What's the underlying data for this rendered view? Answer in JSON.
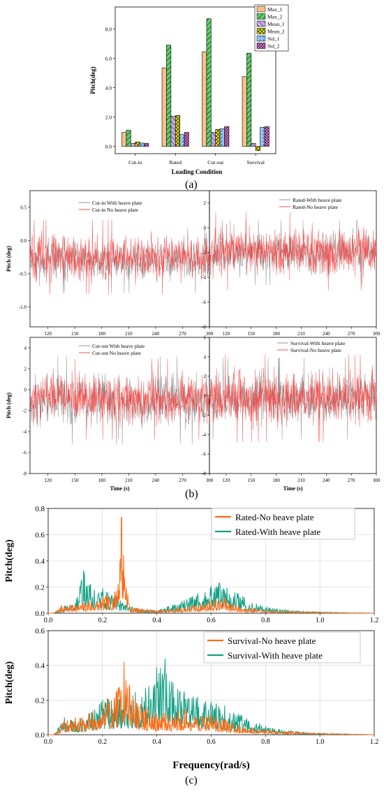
{
  "panel_labels": {
    "a": "(a)",
    "b": "(b)",
    "c": "(c)"
  },
  "colors": {
    "max1": "#f7c08a",
    "max2": "#5fd06a",
    "mean1": "#c9a8e8",
    "mean2": "#f2f200",
    "std1": "#8fc4f0",
    "std2": "#e58ad6",
    "gray": "#8a8a8a",
    "red": "#ff3b3b",
    "orange": "#ff6a13",
    "teal": "#14a085"
  },
  "chart_data": [
    {
      "id": "a",
      "type": "bar",
      "xlabel": "Loading Condition",
      "ylabel": "Pitch(deg)",
      "categories": [
        "Cut-in",
        "Rated",
        "Cut-out",
        "Survival"
      ],
      "ylim": [
        -0.5,
        9.5
      ],
      "yticks": [
        0.0,
        2.0,
        4.0,
        6.0,
        8.0
      ],
      "ytick_labels": [
        "0.0",
        "2.0",
        "4.0",
        "6.0",
        "8.0"
      ],
      "legend_position": "top-right",
      "series": [
        {
          "name": "Max_1",
          "values": [
            0.95,
            5.35,
            6.45,
            4.75
          ]
        },
        {
          "name": "Max_2",
          "values": [
            1.1,
            6.9,
            8.7,
            6.35
          ]
        },
        {
          "name": "Mean_1",
          "values": [
            0.2,
            2.05,
            0.95,
            0.2
          ]
        },
        {
          "name": "Mean_2",
          "values": [
            0.3,
            2.1,
            1.15,
            -0.3
          ]
        },
        {
          "name": "Std_1",
          "values": [
            0.22,
            0.8,
            1.2,
            1.3
          ]
        },
        {
          "name": "Std_2",
          "values": [
            0.2,
            0.95,
            1.35,
            1.35
          ]
        }
      ]
    },
    {
      "id": "b1",
      "type": "line",
      "xlabel": "",
      "ylabel": "Pitch (deg)",
      "xlim": [
        100,
        300
      ],
      "ylim": [
        -1.3,
        0.75
      ],
      "xticks": [
        120,
        150,
        180,
        210,
        240,
        270,
        300
      ],
      "xtick_labels": [
        "120",
        "150",
        "180",
        "210",
        "240",
        "270",
        "300"
      ],
      "yticks": [
        -1.0,
        -0.5,
        0.0,
        0.5
      ],
      "ytick_labels": [
        "-1.0",
        "-0.5",
        "0.0",
        "0.5"
      ],
      "legend_position": "top-center",
      "series": [
        {
          "name": "Cut-in With heave plate",
          "mean": -0.3,
          "std": 0.14,
          "min": -1.0,
          "max": 0.35
        },
        {
          "name": "Cut-in No heave plate",
          "mean": -0.25,
          "std": 0.16,
          "min": -0.95,
          "max": 0.45
        }
      ]
    },
    {
      "id": "b2",
      "type": "line",
      "xlabel": "",
      "ylabel": "",
      "xlim": [
        100,
        300
      ],
      "ylim": [
        -8,
        3
      ],
      "xticks": [
        120,
        150,
        180,
        210,
        240,
        270,
        300
      ],
      "xtick_labels": [
        "120",
        "150",
        "180",
        "210",
        "240",
        "270",
        "300"
      ],
      "yticks": [
        -8,
        -6,
        -4,
        -2,
        0,
        2
      ],
      "ytick_labels": [
        "-8",
        "-6",
        "-4",
        "-2",
        "0",
        "2"
      ],
      "legend_position": "top-right",
      "series": [
        {
          "name": "Rated-With heave plate",
          "mean": -2.0,
          "std": 0.75,
          "min": -6.8,
          "max": 1.9
        },
        {
          "name": "Rated-No heave plate",
          "mean": -1.9,
          "std": 0.9,
          "min": -5.4,
          "max": 1.7
        }
      ]
    },
    {
      "id": "b3",
      "type": "line",
      "xlabel": "Time (s)",
      "ylabel": "Pitch (deg)",
      "xlim": [
        100,
        300
      ],
      "ylim": [
        -8,
        5
      ],
      "xticks": [
        120,
        150,
        180,
        210,
        240,
        270,
        300
      ],
      "xtick_labels": [
        "120",
        "150",
        "180",
        "210",
        "240",
        "270",
        "300"
      ],
      "yticks": [
        -8,
        -6,
        -4,
        -2,
        0,
        2,
        4
      ],
      "ytick_labels": [
        "-8",
        "-6",
        "-4",
        "-2",
        "0",
        "2",
        "4"
      ],
      "legend_position": "top-center",
      "series": [
        {
          "name": "Cut-out With heave plate",
          "mean": -1.0,
          "std": 1.2,
          "min": -6.8,
          "max": 3.3
        },
        {
          "name": "Cut-out No heave plate",
          "mean": -0.9,
          "std": 1.1,
          "min": -6.2,
          "max": 3.0
        }
      ]
    },
    {
      "id": "b4",
      "type": "line",
      "xlabel": "Time (s)",
      "ylabel": "",
      "xlim": [
        100,
        300
      ],
      "ylim": [
        -8,
        6
      ],
      "xticks": [
        120,
        150,
        180,
        210,
        240,
        270,
        300
      ],
      "xtick_labels": [
        "120",
        "150",
        "180",
        "210",
        "240",
        "270",
        "300"
      ],
      "yticks": [
        -8,
        -6,
        -4,
        -2,
        0,
        2,
        4,
        6
      ],
      "ytick_labels": [
        "-8",
        "-6",
        "-4",
        "-2",
        "0",
        "2",
        "4",
        "6"
      ],
      "legend_position": "top-right",
      "series": [
        {
          "name": "Survival-With heave plate",
          "mean": -0.3,
          "std": 1.2,
          "min": -5.8,
          "max": 4.8
        },
        {
          "name": "Survival-No heave plate",
          "mean": -0.2,
          "std": 1.3,
          "min": -5.6,
          "max": 4.2
        }
      ]
    },
    {
      "id": "c1",
      "type": "line",
      "xlabel": "",
      "ylabel": "Pitch(deg)",
      "xlim": [
        0,
        1.2
      ],
      "ylim": [
        0,
        0.8
      ],
      "xticks": [
        0.0,
        0.2,
        0.4,
        0.6,
        0.8,
        1.0,
        1.2
      ],
      "xtick_labels": [
        "0.0",
        "0.2",
        "0.4",
        "0.6",
        "0.8",
        "1.0",
        "1.2"
      ],
      "yticks": [
        0.0,
        0.2,
        0.4,
        0.6,
        0.8
      ],
      "ytick_labels": [
        "0.0",
        "0.2",
        "0.4",
        "0.6",
        "0.8"
      ],
      "grid": true,
      "legend_position": "top-right",
      "series": [
        {
          "name": "Rated-No heave plate",
          "peaks": [
            [
              0.02,
              0.0
            ],
            [
              0.05,
              0.06
            ],
            [
              0.1,
              0.07
            ],
            [
              0.15,
              0.09
            ],
            [
              0.2,
              0.12
            ],
            [
              0.25,
              0.17
            ],
            [
              0.27,
              0.73
            ],
            [
              0.3,
              0.05
            ],
            [
              0.4,
              0.02
            ],
            [
              0.5,
              0.05
            ],
            [
              0.6,
              0.1
            ],
            [
              0.65,
              0.12
            ],
            [
              0.7,
              0.06
            ],
            [
              0.8,
              0.02
            ],
            [
              1.0,
              0.01
            ],
            [
              1.2,
              0.0
            ]
          ]
        },
        {
          "name": "Rated-With heave plate",
          "peaks": [
            [
              0.02,
              0.0
            ],
            [
              0.05,
              0.05
            ],
            [
              0.1,
              0.08
            ],
            [
              0.13,
              0.33
            ],
            [
              0.17,
              0.18
            ],
            [
              0.2,
              0.19
            ],
            [
              0.25,
              0.14
            ],
            [
              0.3,
              0.05
            ],
            [
              0.4,
              0.02
            ],
            [
              0.5,
              0.1
            ],
            [
              0.55,
              0.15
            ],
            [
              0.6,
              0.21
            ],
            [
              0.63,
              0.23
            ],
            [
              0.7,
              0.15
            ],
            [
              0.78,
              0.06
            ],
            [
              0.9,
              0.02
            ],
            [
              1.0,
              0.01
            ],
            [
              1.2,
              0.0
            ]
          ]
        }
      ]
    },
    {
      "id": "c2",
      "type": "line",
      "xlabel": "Frequency(rad/s)",
      "ylabel": "Pitch(deg)",
      "xlim": [
        0,
        1.2
      ],
      "ylim": [
        0,
        0.6
      ],
      "xticks": [
        0.0,
        0.2,
        0.4,
        0.6,
        0.8,
        1.0,
        1.2
      ],
      "xtick_labels": [
        "0.0",
        "0.2",
        "0.4",
        "0.6",
        "0.8",
        "1.0",
        "1.2"
      ],
      "yticks": [
        0.0,
        0.2,
        0.4,
        0.6
      ],
      "ytick_labels": [
        "0.0",
        "0.2",
        "0.4",
        "0.6"
      ],
      "grid": true,
      "legend_position": "top-right",
      "series": [
        {
          "name": "Survival-No heave plate",
          "peaks": [
            [
              0.02,
              0.0
            ],
            [
              0.06,
              0.08
            ],
            [
              0.1,
              0.1
            ],
            [
              0.15,
              0.12
            ],
            [
              0.2,
              0.18
            ],
            [
              0.22,
              0.21
            ],
            [
              0.25,
              0.25
            ],
            [
              0.28,
              0.42
            ],
            [
              0.32,
              0.2
            ],
            [
              0.36,
              0.16
            ],
            [
              0.4,
              0.12
            ],
            [
              0.5,
              0.15
            ],
            [
              0.6,
              0.12
            ],
            [
              0.7,
              0.06
            ],
            [
              0.8,
              0.03
            ],
            [
              1.0,
              0.01
            ],
            [
              1.2,
              0.0
            ]
          ]
        },
        {
          "name": "Survival-With heave plate",
          "peaks": [
            [
              0.02,
              0.0
            ],
            [
              0.06,
              0.1
            ],
            [
              0.1,
              0.08
            ],
            [
              0.15,
              0.12
            ],
            [
              0.2,
              0.2
            ],
            [
              0.3,
              0.25
            ],
            [
              0.37,
              0.28
            ],
            [
              0.4,
              0.39
            ],
            [
              0.43,
              0.44
            ],
            [
              0.46,
              0.3
            ],
            [
              0.5,
              0.25
            ],
            [
              0.55,
              0.22
            ],
            [
              0.6,
              0.19
            ],
            [
              0.65,
              0.17
            ],
            [
              0.7,
              0.12
            ],
            [
              0.8,
              0.05
            ],
            [
              0.9,
              0.02
            ],
            [
              1.0,
              0.01
            ],
            [
              1.2,
              0.0
            ]
          ]
        }
      ]
    }
  ]
}
